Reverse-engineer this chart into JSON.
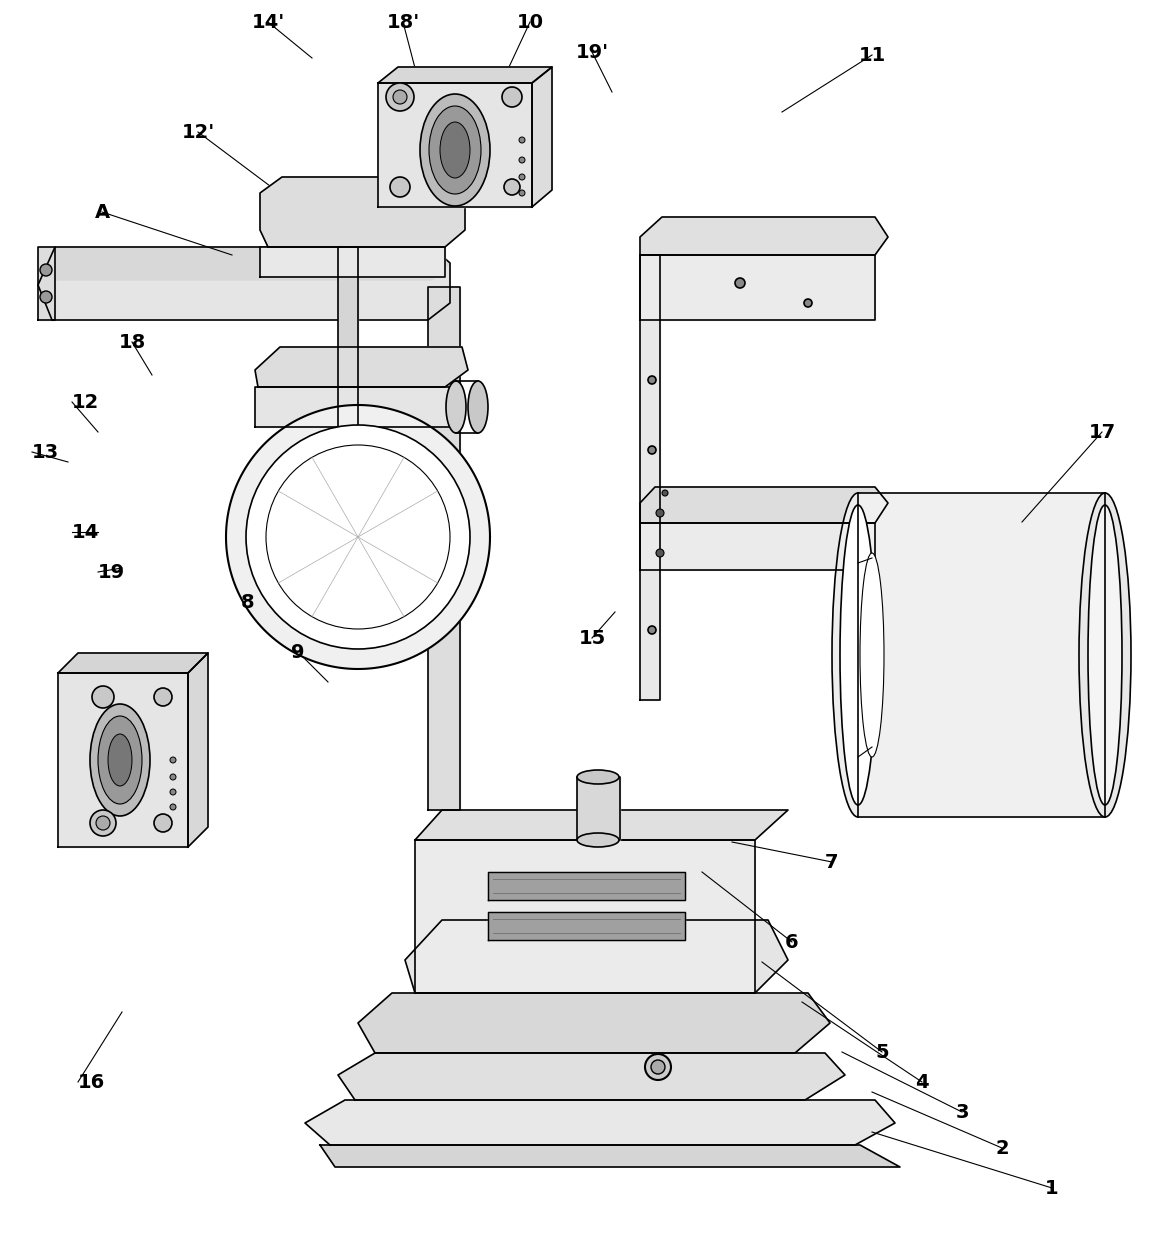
{
  "bg_color": "#ffffff",
  "line_color": "#000000",
  "font_size": 14,
  "font_weight": "bold"
}
